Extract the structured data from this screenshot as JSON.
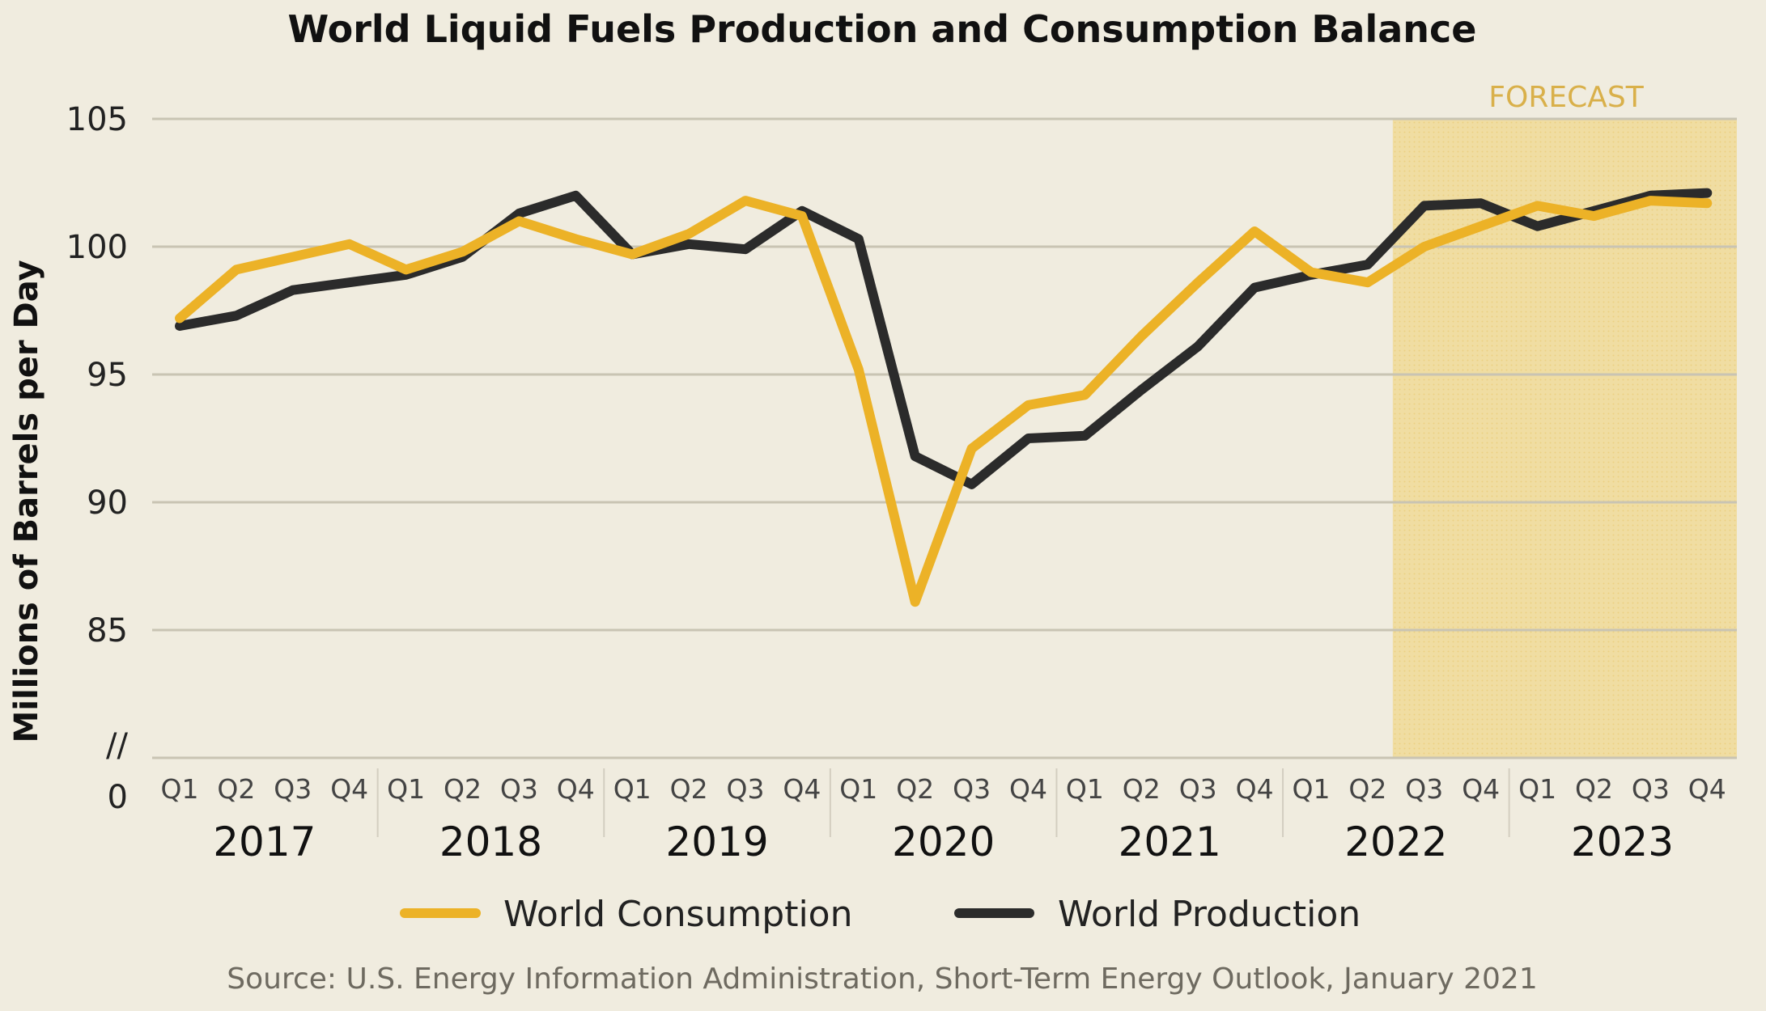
{
  "chart_data": {
    "type": "line",
    "title": "World Liquid Fuels Production and Consumption Balance",
    "ylabel": "Millions of  Barrels per Day",
    "ylim": [
      80,
      105
    ],
    "y_ticks": [
      "105",
      "100",
      "95",
      "90",
      "85"
    ],
    "y_zero_label": "0",
    "axis_break_label": "//",
    "quarters": [
      "Q1",
      "Q2",
      "Q3",
      "Q4"
    ],
    "years": [
      "2017",
      "2018",
      "2019",
      "2020",
      "2021",
      "2022",
      "2023"
    ],
    "x": [
      "2017 Q1",
      "2017 Q2",
      "2017 Q3",
      "2017 Q4",
      "2018 Q1",
      "2018 Q2",
      "2018 Q3",
      "2018 Q4",
      "2019 Q1",
      "2019 Q2",
      "2019 Q3",
      "2019 Q4",
      "2020 Q1",
      "2020 Q2",
      "2020 Q3",
      "2020 Q4",
      "2021 Q1",
      "2021 Q2",
      "2021 Q3",
      "2021 Q4",
      "2022 Q1",
      "2022 Q2",
      "2022 Q3",
      "2022 Q4",
      "2023 Q1",
      "2023 Q2",
      "2023 Q3",
      "2023 Q4"
    ],
    "series": [
      {
        "name": "World Consumption",
        "color": "#ecb227",
        "values": [
          97.2,
          99.1,
          99.6,
          100.1,
          99.1,
          99.8,
          101.0,
          100.3,
          99.7,
          100.5,
          101.8,
          101.2,
          95.2,
          86.1,
          92.1,
          93.8,
          94.2,
          96.5,
          98.6,
          100.6,
          99.0,
          98.6,
          100.0,
          100.8,
          101.6,
          101.2,
          101.8,
          101.7
        ]
      },
      {
        "name": "World Production",
        "color": "#2b2b2b",
        "values": [
          96.9,
          97.3,
          98.3,
          98.6,
          98.9,
          99.6,
          101.3,
          102.0,
          99.7,
          100.1,
          99.9,
          101.4,
          100.3,
          91.8,
          90.7,
          92.5,
          92.6,
          94.4,
          96.1,
          98.4,
          98.9,
          99.3,
          101.6,
          101.7,
          100.8,
          101.4,
          102.0,
          102.1
        ]
      }
    ],
    "forecast_label": "FORECAST",
    "forecast_start": "2022 Q3",
    "forecast_end": "2023 Q4",
    "forecast_color": "#f0d88e",
    "grid": true,
    "legend": "bottom",
    "source": "Source: U.S. Energy Information Administration, Short-Term Energy Outlook, January 2021"
  }
}
